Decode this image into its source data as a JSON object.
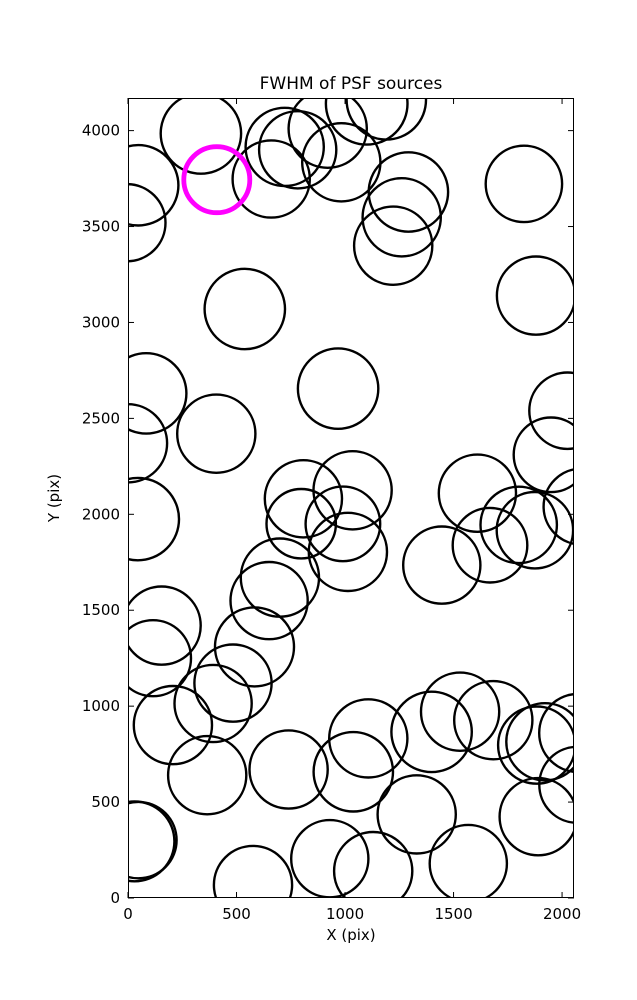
{
  "title": "FWHM of PSF sources",
  "chart_data": {
    "type": "scatter",
    "title": "FWHM of PSF sources",
    "xlabel": "X (pix)",
    "ylabel": "Y (pix)",
    "xlim": [
      0,
      2055
    ],
    "ylim": [
      0,
      4170
    ],
    "xticks": [
      0,
      500,
      1000,
      1500,
      2000
    ],
    "yticks": [
      0,
      500,
      1000,
      1500,
      2000,
      2500,
      3000,
      3500,
      4000
    ],
    "grid": false,
    "legend": "none",
    "marker_style": "open-circle",
    "marker_color": "#000000",
    "highlight_color": "#ff00ff",
    "axis_color": "#000000",
    "background_color": "#ffffff",
    "sources": [
      [
        336,
        3985,
        185
      ],
      [
        47,
        3715,
        185
      ],
      [
        -5,
        3520,
        178
      ],
      [
        722,
        3915,
        180
      ],
      [
        782,
        3900,
        178
      ],
      [
        660,
        3748,
        178
      ],
      [
        920,
        4010,
        180
      ],
      [
        983,
        3835,
        180
      ],
      [
        1100,
        4140,
        188
      ],
      [
        1190,
        4160,
        183
      ],
      [
        1292,
        3680,
        183
      ],
      [
        1261,
        3548,
        180
      ],
      [
        1222,
        3400,
        180
      ],
      [
        1824,
        3722,
        176
      ],
      [
        538,
        3070,
        185
      ],
      [
        1880,
        3140,
        180
      ],
      [
        968,
        2655,
        185
      ],
      [
        84,
        2630,
        185
      ],
      [
        0,
        2370,
        180
      ],
      [
        407,
        2420,
        180
      ],
      [
        2025,
        2540,
        176
      ],
      [
        1949,
        2310,
        172
      ],
      [
        808,
        2081,
        178
      ],
      [
        798,
        1951,
        160
      ],
      [
        1035,
        2125,
        180
      ],
      [
        990,
        1950,
        172
      ],
      [
        1013,
        1804,
        180
      ],
      [
        1610,
        2110,
        178
      ],
      [
        1800,
        1945,
        176
      ],
      [
        1875,
        1917,
        176
      ],
      [
        1668,
        1839,
        172
      ],
      [
        1446,
        1735,
        178
      ],
      [
        2090,
        2040,
        175
      ],
      [
        45,
        1975,
        190
      ],
      [
        700,
        1670,
        180
      ],
      [
        650,
        1550,
        178
      ],
      [
        583,
        1309,
        182
      ],
      [
        484,
        1120,
        178
      ],
      [
        392,
        1014,
        178
      ],
      [
        207,
        901,
        180
      ],
      [
        155,
        1420,
        180
      ],
      [
        115,
        1250,
        175
      ],
      [
        365,
        640,
        180
      ],
      [
        740,
        670,
        180
      ],
      [
        1038,
        658,
        183
      ],
      [
        1107,
        832,
        180
      ],
      [
        1399,
        866,
        185
      ],
      [
        1530,
        971,
        180
      ],
      [
        1683,
        927,
        180
      ],
      [
        1883,
        797,
        178
      ],
      [
        1921,
        814,
        178
      ],
      [
        2075,
        860,
        180
      ],
      [
        2070,
        590,
        175
      ],
      [
        1330,
        436,
        180
      ],
      [
        1890,
        424,
        178
      ],
      [
        1568,
        180,
        178
      ],
      [
        1130,
        140,
        180
      ],
      [
        930,
        205,
        178
      ],
      [
        576,
        68,
        180
      ],
      [
        48,
        302,
        176
      ],
      [
        30,
        295,
        184
      ]
    ],
    "highlighted_source": {
      "x": 409,
      "y": 3744,
      "r": 152
    }
  }
}
